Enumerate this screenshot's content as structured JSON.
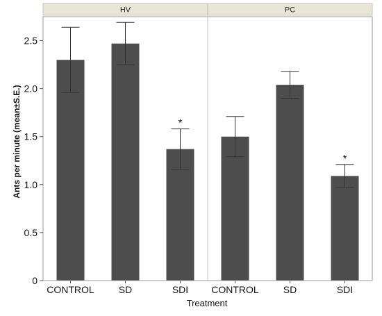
{
  "chart_data": {
    "type": "bar",
    "xlabel": "Treatment",
    "ylabel": "Ants per minute  (mean±S.E.)",
    "ylim": [
      0,
      2.75
    ],
    "yticks": [
      "0",
      "0.5",
      "1.0",
      "1.5",
      "2.0",
      "2.5"
    ],
    "grid": false,
    "bar_color": "#4d4d4d",
    "panel_header_color": "#e8e6d6",
    "significance_marker": "*",
    "panels": [
      {
        "name": "HV",
        "categories": [
          "CONTROL",
          "SD",
          "SDI"
        ],
        "values": [
          2.3,
          2.47,
          1.37
        ],
        "errors": [
          0.34,
          0.22,
          0.21
        ],
        "significant": [
          false,
          false,
          true
        ]
      },
      {
        "name": "PC",
        "categories": [
          "CONTROL",
          "SD",
          "SDI"
        ],
        "values": [
          1.5,
          2.04,
          1.09
        ],
        "errors": [
          0.21,
          0.14,
          0.12
        ],
        "significant": [
          false,
          false,
          true
        ]
      }
    ]
  }
}
